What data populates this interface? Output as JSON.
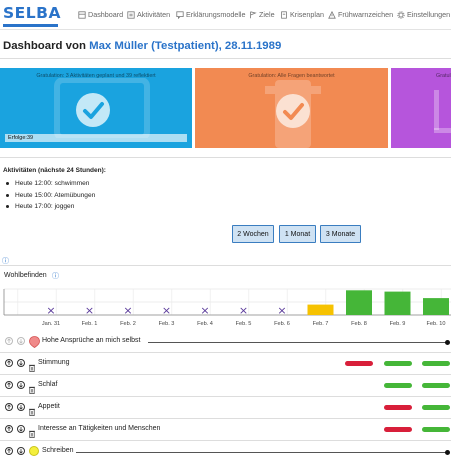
{
  "app": {
    "logo": "SELBA",
    "nav": [
      {
        "label": "Dashboard",
        "icon": "dashboard-icon"
      },
      {
        "label": "Aktivitäten",
        "icon": "list-icon"
      },
      {
        "label": "Erklärungsmodelle",
        "icon": "chat-icon"
      },
      {
        "label": "Ziele",
        "icon": "flag-icon"
      },
      {
        "label": "Krisenplan",
        "icon": "document-icon"
      },
      {
        "label": "Frühwarnzeichen",
        "icon": "warning-icon"
      },
      {
        "label": "Einstellungen",
        "icon": "gear-icon"
      }
    ]
  },
  "header": {
    "prefix": "Dashboard von ",
    "patient": "Max Müller (Testpatient), 28.11.1989"
  },
  "cards": [
    {
      "caption": "Gratulation: 3 Aktivitäten geplant und 39 reflektiert",
      "color": "#1aa3df",
      "progress_label": "Erfolge:39",
      "progress": 1.0
    },
    {
      "caption": "Gratulation: Alle Fragen beantwortet",
      "color": "#f28a52"
    },
    {
      "caption": "Gratul",
      "color": "#b655dc"
    }
  ],
  "activities": {
    "heading": "Aktivitäten (nächste 24 Stunden):",
    "items": [
      "Heute 12:00: schwimmen",
      "Heute 15:00: Atemübungen",
      "Heute 17:00: joggen"
    ]
  },
  "ranges": {
    "buttons": [
      "2 Wochen",
      "1 Monat",
      "3 Monate"
    ]
  },
  "wellbeing": {
    "label": "Wohlbefinden"
  },
  "chart_data": {
    "type": "bar",
    "title": "Wohlbefinden",
    "categories": [
      "Jan. 31",
      "Feb. 1",
      "Feb. 2",
      "Feb. 3",
      "Feb. 4",
      "Feb. 5",
      "Feb. 6",
      "Feb. 7",
      "Feb. 8",
      "Feb. 9",
      "Feb. 10"
    ],
    "values": [
      null,
      null,
      null,
      null,
      null,
      null,
      null,
      0.4,
      0.95,
      0.9,
      0.65
    ],
    "bar_colors": [
      "",
      "",
      "",
      "",
      "",
      "",
      "",
      "#f6c200",
      "#45b638",
      "#45b638",
      "#45b638"
    ],
    "missing_marker": "×",
    "grid": true
  },
  "rows": [
    {
      "label": "Hohe Ansprüche an mich selbst",
      "badge": "red",
      "controls_faded": true,
      "pills": []
    },
    {
      "label": "Stimmung",
      "pills": [
        {
          "day": 8,
          "color": "#d81f3a"
        },
        {
          "day": 9,
          "color": "#45b638"
        },
        {
          "day": 10,
          "color": "#45b638"
        }
      ]
    },
    {
      "label": "Schlaf",
      "pills": [
        {
          "day": 9,
          "color": "#45b638"
        },
        {
          "day": 10,
          "color": "#45b638"
        }
      ]
    },
    {
      "label": "Appetit",
      "pills": [
        {
          "day": 9,
          "color": "#d81f3a"
        },
        {
          "day": 10,
          "color": "#45b638"
        }
      ]
    },
    {
      "label": "Interesse an Tätigkeiten und Menschen",
      "pills": [
        {
          "day": 9,
          "color": "#d81f3a"
        },
        {
          "day": 10,
          "color": "#45b638"
        }
      ]
    },
    {
      "label": "Schreiben",
      "badge": "yellow",
      "pills": []
    }
  ]
}
